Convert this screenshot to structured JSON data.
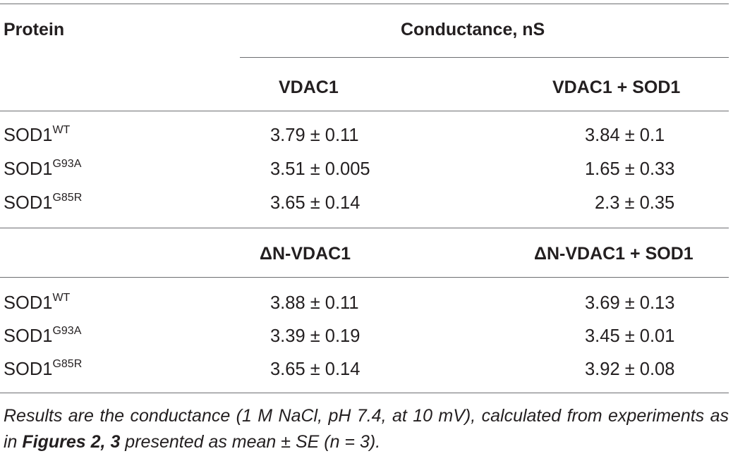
{
  "table": {
    "header": {
      "protein": "Protein",
      "conductance": "Conductance, nS"
    },
    "sections": [
      {
        "col1": "VDAC1",
        "col2": "VDAC1 + SOD1",
        "rows": [
          {
            "base": "SOD1",
            "sup": "WT",
            "v1": "3.79 ± 0.11",
            "v2": "3.84 ± 0.1"
          },
          {
            "base": "SOD1",
            "sup": "G93A",
            "v1": "3.51 ± 0.005",
            "v2": "1.65 ± 0.33"
          },
          {
            "base": "SOD1",
            "sup": "G85R",
            "v1": "3.65 ± 0.14",
            "v2": "2.3 ± 0.35"
          }
        ]
      },
      {
        "col1": "ΔN-VDAC1",
        "col2": "ΔN-VDAC1 + SOD1",
        "rows": [
          {
            "base": "SOD1",
            "sup": "WT",
            "v1": "3.88 ± 0.11",
            "v2": "3.69 ± 0.13"
          },
          {
            "base": "SOD1",
            "sup": "G93A",
            "v1": "3.39 ± 0.19",
            "v2": "3.45 ± 0.01"
          },
          {
            "base": "SOD1",
            "sup": "G85R",
            "v1": "3.65 ± 0.14",
            "v2": "3.92 ± 0.08"
          }
        ]
      }
    ]
  },
  "footnote": {
    "part1": "Results are the conductance (1 M NaCl, pH 7.4, at 10 mV), calculated from experiments as in ",
    "bold": "Figures 2, 3",
    "part2": " presented as mean ± SE (n = 3)."
  }
}
